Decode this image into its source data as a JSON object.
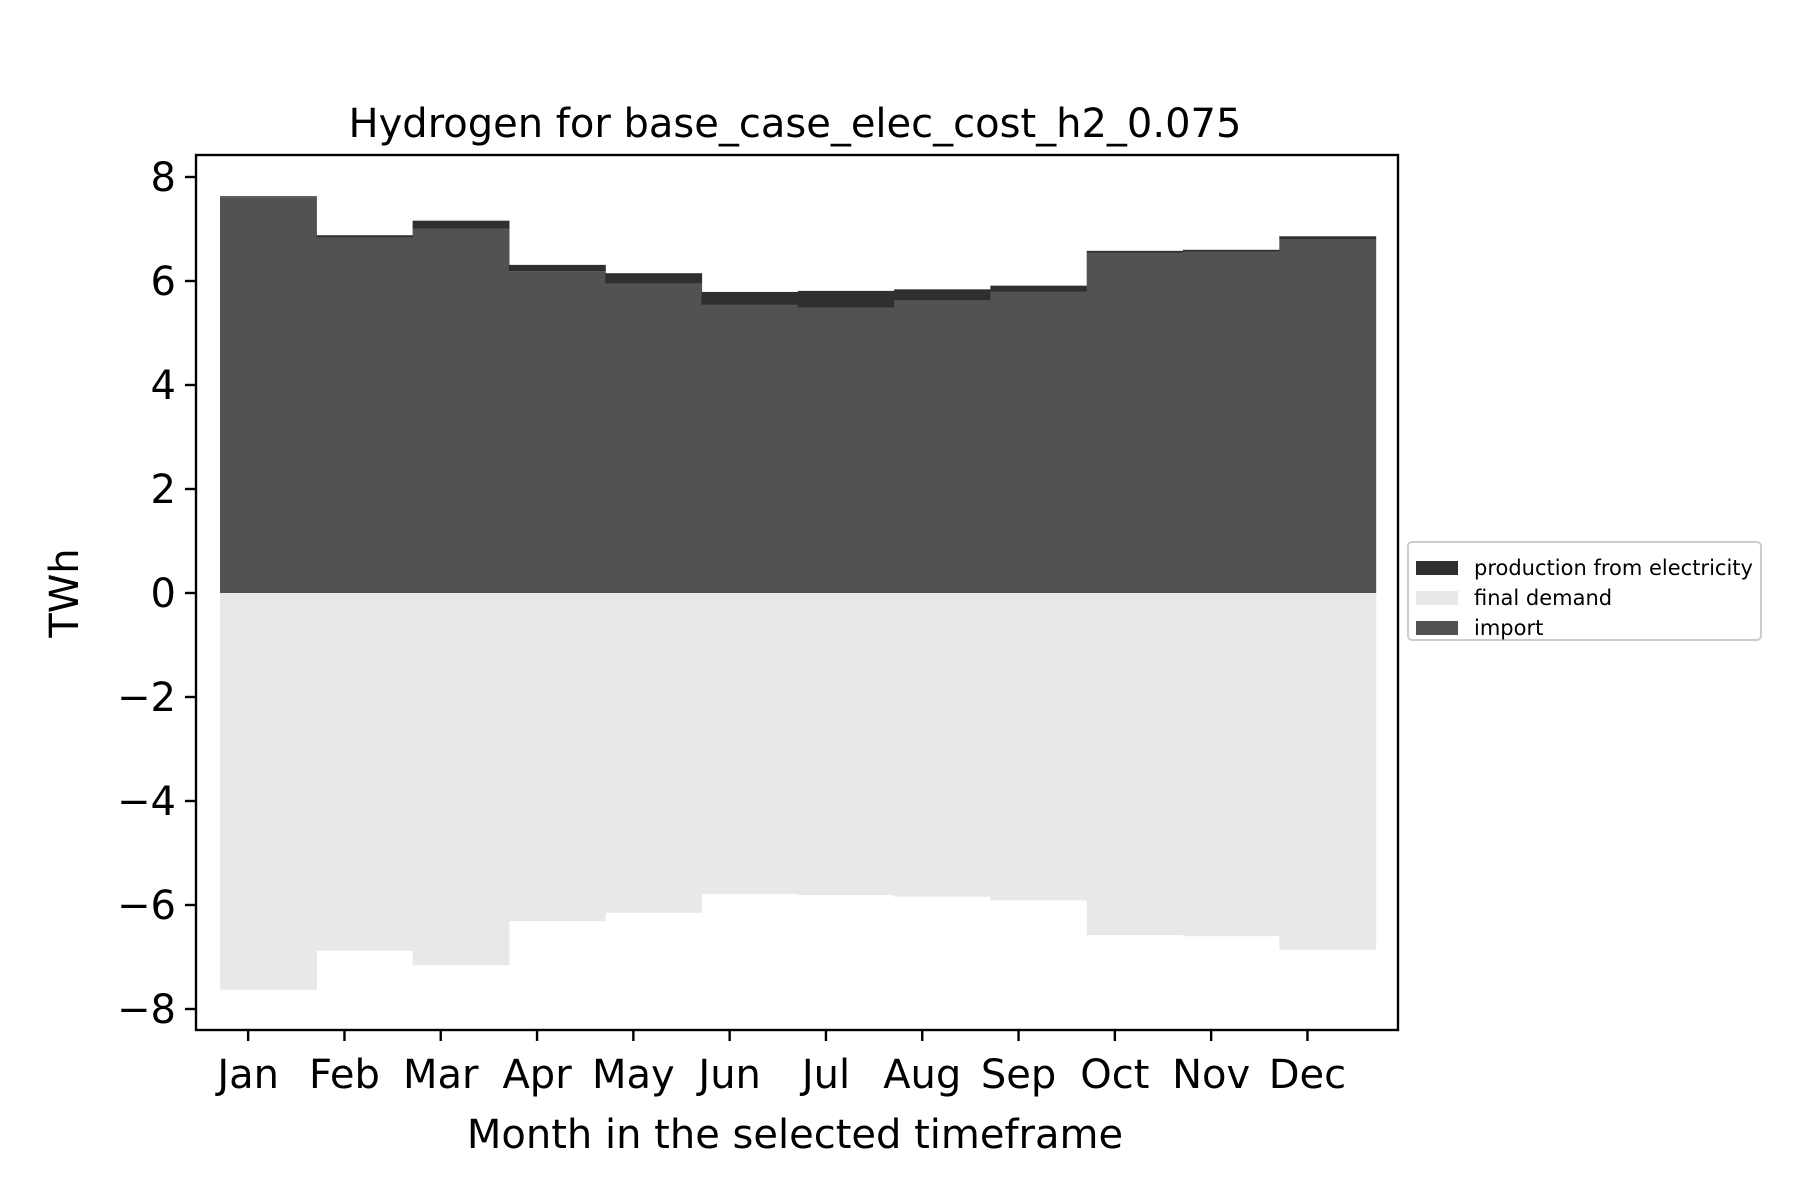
{
  "chart_data": {
    "type": "area",
    "title": "Hydrogen for base_case_elec_cost_h2_0.075",
    "xlabel": "Month in the selected timeframe",
    "ylabel": "TWh",
    "categories": [
      "Jan",
      "Feb",
      "Mar",
      "Apr",
      "May",
      "Jun",
      "Jul",
      "Aug",
      "Sep",
      "Oct",
      "Nov",
      "Dec"
    ],
    "ylim": [
      -8.4,
      8.4
    ],
    "yticks": [
      8,
      6,
      4,
      2,
      0,
      -2,
      -4,
      -6,
      -8
    ],
    "ytick_labels": [
      "8",
      "6",
      "4",
      "2",
      "0",
      "−2",
      "−4",
      "−6",
      "−8"
    ],
    "grid": false,
    "legend_position": "right, outside plot",
    "series": [
      {
        "name": "production from electricity",
        "color": "#2f2f2f",
        "values": [
          0.02,
          0.05,
          0.15,
          0.12,
          0.2,
          0.25,
          0.32,
          0.22,
          0.12,
          0.04,
          0.04,
          0.06
        ]
      },
      {
        "name": "final demand",
        "color": "#e8e8e8",
        "values": [
          -7.63,
          -6.88,
          -7.16,
          -6.31,
          -6.15,
          -5.79,
          -5.81,
          -5.84,
          -5.91,
          -6.58,
          -6.6,
          -6.86
        ]
      },
      {
        "name": "import",
        "color": "#525252",
        "values": [
          7.61,
          6.83,
          7.01,
          6.19,
          5.95,
          5.54,
          5.49,
          5.62,
          5.79,
          6.54,
          6.56,
          6.8
        ]
      }
    ]
  }
}
